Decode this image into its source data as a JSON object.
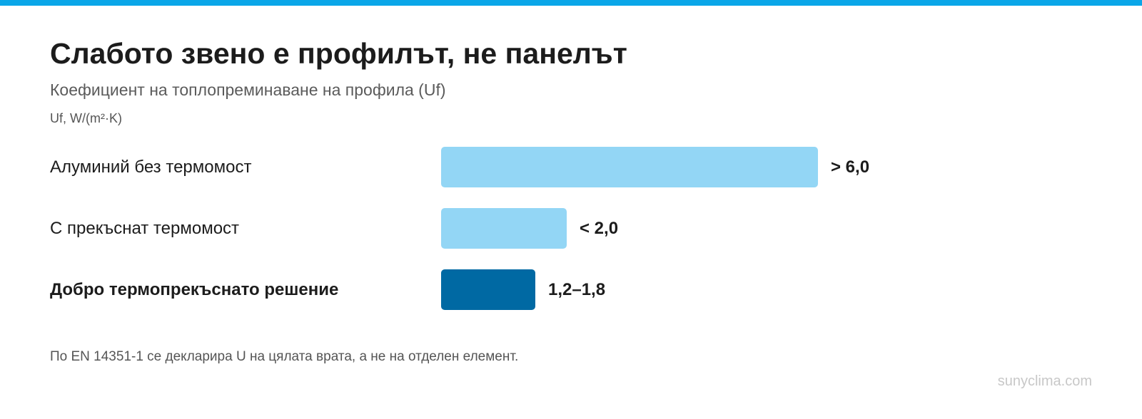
{
  "chart_data": {
    "type": "bar",
    "orientation": "horizontal",
    "title": "Слабото звено е профилът, не панелът",
    "subtitle": "Коефициент на топлопреминаване на профила (Uf)",
    "unit_label": "Uf, W/(m²·K)",
    "categories": [
      "Алуминий без термомост",
      "С прекъснат термомост",
      "Добро термопрекъснато решение"
    ],
    "values": [
      6.0,
      2.0,
      1.5
    ],
    "value_labels": [
      "> 6,0",
      "< 2,0",
      "1,2–1,8"
    ],
    "highlight_index": 2,
    "grid": false,
    "colors": {
      "default": "#93d6f5",
      "highlight": "#0069a3",
      "stripe": "#0aa6e8"
    }
  },
  "note": "По EN 14351-1 се декларира U на цялата врата, а не на отделен елемент.",
  "source": "sunyclima.com"
}
